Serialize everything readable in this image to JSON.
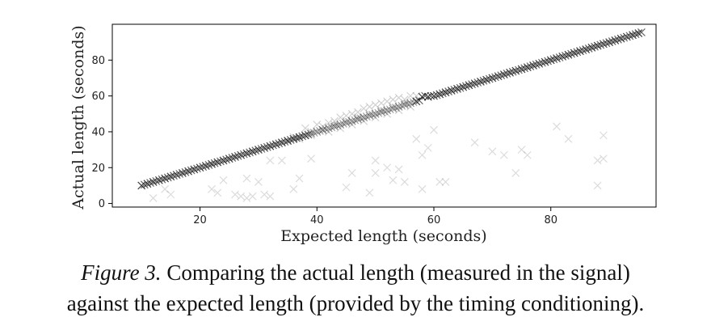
{
  "chart_data": {
    "type": "scatter",
    "title": "",
    "xlabel": "Expected length (seconds)",
    "ylabel": "Actual length (seconds)",
    "xlim": [
      5,
      98
    ],
    "ylim": [
      -2,
      100
    ],
    "xticks": [
      20,
      40,
      60,
      80
    ],
    "yticks": [
      0,
      20,
      40,
      60,
      80
    ],
    "marker": "x",
    "color": "#000000",
    "series": [
      {
        "values_note": "",
        "main": [
          [
            10,
            10
          ],
          [
            11,
            11
          ],
          [
            12,
            12
          ],
          [
            13,
            13
          ],
          [
            14,
            14
          ],
          [
            15,
            15
          ],
          [
            16,
            16
          ],
          [
            17,
            17
          ],
          [
            18,
            18
          ],
          [
            19,
            19
          ],
          [
            20,
            20
          ],
          [
            21,
            21
          ],
          [
            22,
            22
          ],
          [
            23,
            23
          ],
          [
            24,
            24
          ],
          [
            25,
            25
          ],
          [
            26,
            26
          ],
          [
            27,
            27
          ],
          [
            28,
            28
          ],
          [
            29,
            29
          ],
          [
            30,
            30
          ],
          [
            31,
            31
          ],
          [
            32,
            32
          ],
          [
            33,
            33
          ],
          [
            34,
            34
          ],
          [
            35,
            35
          ],
          [
            36,
            36
          ],
          [
            37,
            37
          ],
          [
            38,
            38
          ],
          [
            39,
            39
          ],
          [
            40,
            40
          ],
          [
            41,
            41
          ],
          [
            42,
            42
          ],
          [
            43,
            43
          ],
          [
            44,
            44
          ],
          [
            45,
            45
          ],
          [
            46,
            46
          ],
          [
            47,
            47
          ],
          [
            48,
            48
          ],
          [
            49,
            49
          ],
          [
            50,
            50
          ],
          [
            51,
            51
          ],
          [
            52,
            52
          ],
          [
            53,
            53
          ],
          [
            54,
            54
          ],
          [
            55,
            55
          ],
          [
            56,
            56
          ],
          [
            57,
            57
          ],
          [
            58,
            59.5
          ],
          [
            59,
            59.5
          ],
          [
            60,
            60
          ],
          [
            61,
            61
          ],
          [
            62,
            62
          ],
          [
            63,
            63
          ],
          [
            64,
            64
          ],
          [
            65,
            65
          ],
          [
            66,
            66
          ],
          [
            67,
            67
          ],
          [
            68,
            68
          ],
          [
            69,
            69
          ],
          [
            70,
            70
          ],
          [
            71,
            71
          ],
          [
            72,
            72
          ],
          [
            73,
            73
          ],
          [
            74,
            74
          ],
          [
            75,
            75
          ],
          [
            76,
            76
          ],
          [
            77,
            77
          ],
          [
            78,
            78
          ],
          [
            79,
            79
          ],
          [
            80,
            80
          ],
          [
            81,
            81
          ],
          [
            82,
            82
          ],
          [
            83,
            83
          ],
          [
            84,
            84
          ],
          [
            85,
            85
          ],
          [
            86,
            86
          ],
          [
            87,
            87
          ],
          [
            88,
            88
          ],
          [
            89,
            89
          ],
          [
            90,
            90
          ],
          [
            91,
            91
          ],
          [
            92,
            92
          ],
          [
            93,
            93
          ],
          [
            94,
            94
          ],
          [
            95,
            95
          ]
        ],
        "band": [
          [
            38,
            42
          ],
          [
            39,
            40
          ],
          [
            40,
            44
          ],
          [
            41,
            43
          ],
          [
            42,
            45
          ],
          [
            43,
            46
          ],
          [
            44,
            48
          ],
          [
            45,
            49
          ],
          [
            46,
            50
          ],
          [
            47,
            51
          ],
          [
            48,
            53
          ],
          [
            49,
            54
          ],
          [
            50,
            55
          ],
          [
            51,
            56
          ],
          [
            52,
            57
          ],
          [
            53,
            58
          ],
          [
            54,
            59
          ],
          [
            55,
            58
          ],
          [
            56,
            60
          ],
          [
            57,
            60
          ],
          [
            42,
            40
          ],
          [
            44,
            42
          ],
          [
            46,
            44
          ],
          [
            48,
            46
          ],
          [
            50,
            48
          ],
          [
            52,
            50
          ],
          [
            54,
            52
          ],
          [
            56,
            54
          ],
          [
            45,
            46
          ],
          [
            47,
            48
          ],
          [
            49,
            50
          ],
          [
            51,
            52
          ],
          [
            53,
            54
          ],
          [
            55,
            56
          ],
          [
            43,
            44
          ],
          [
            41,
            41
          ],
          [
            39,
            38
          ],
          [
            37,
            36
          ],
          [
            36,
            37
          ],
          [
            35,
            35
          ]
        ],
        "outliers": [
          [
            12,
            3
          ],
          [
            14,
            8
          ],
          [
            15,
            5
          ],
          [
            22,
            8
          ],
          [
            23,
            6
          ],
          [
            24,
            13
          ],
          [
            26,
            5
          ],
          [
            27,
            4
          ],
          [
            28,
            3
          ],
          [
            28,
            14
          ],
          [
            29,
            4
          ],
          [
            30,
            12
          ],
          [
            31,
            5
          ],
          [
            32,
            4
          ],
          [
            32,
            24
          ],
          [
            34,
            24
          ],
          [
            36,
            8
          ],
          [
            37,
            14
          ],
          [
            39,
            25
          ],
          [
            45,
            9
          ],
          [
            46,
            17
          ],
          [
            49,
            6
          ],
          [
            50,
            17
          ],
          [
            50,
            24
          ],
          [
            52,
            20
          ],
          [
            53,
            13
          ],
          [
            54,
            19
          ],
          [
            55,
            12
          ],
          [
            57,
            36
          ],
          [
            58,
            8
          ],
          [
            58,
            27
          ],
          [
            59,
            31
          ],
          [
            60,
            41
          ],
          [
            61,
            12
          ],
          [
            62,
            12
          ],
          [
            67,
            34
          ],
          [
            70,
            29
          ],
          [
            72,
            27
          ],
          [
            74,
            17
          ],
          [
            75,
            30
          ],
          [
            76,
            27
          ],
          [
            81,
            43
          ],
          [
            83,
            36
          ],
          [
            88,
            10
          ],
          [
            88,
            24
          ],
          [
            89,
            38
          ],
          [
            89,
            25
          ]
        ]
      }
    ]
  },
  "caption": {
    "figure_label": "Figure 3.",
    "line1": "Comparing the actual length (measured in the signal)",
    "line2": "against the expected length (provided by the timing conditioning)."
  }
}
